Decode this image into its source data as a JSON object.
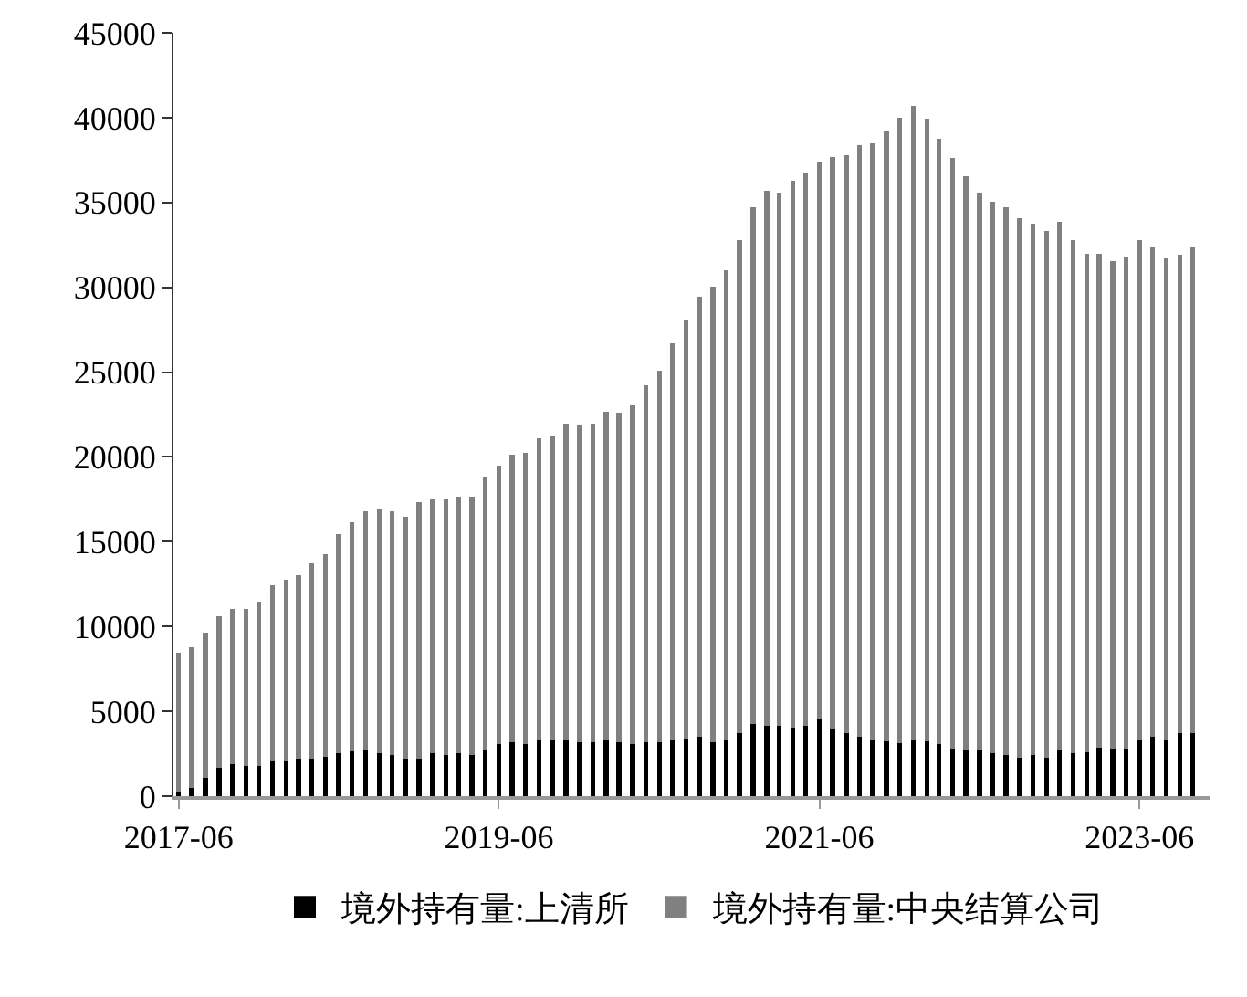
{
  "chart_data": {
    "type": "bar",
    "stacked": true,
    "x": [
      "2017-06",
      "2017-07",
      "2017-08",
      "2017-09",
      "2017-10",
      "2017-11",
      "2017-12",
      "2018-01",
      "2018-02",
      "2018-03",
      "2018-04",
      "2018-05",
      "2018-06",
      "2018-07",
      "2018-08",
      "2018-09",
      "2018-10",
      "2018-11",
      "2018-12",
      "2019-01",
      "2019-02",
      "2019-03",
      "2019-04",
      "2019-05",
      "2019-06",
      "2019-07",
      "2019-08",
      "2019-09",
      "2019-10",
      "2019-11",
      "2019-12",
      "2020-01",
      "2020-02",
      "2020-03",
      "2020-04",
      "2020-05",
      "2020-06",
      "2020-07",
      "2020-08",
      "2020-09",
      "2020-10",
      "2020-11",
      "2020-12",
      "2021-01",
      "2021-02",
      "2021-03",
      "2021-04",
      "2021-05",
      "2021-06",
      "2021-07",
      "2021-08",
      "2021-09",
      "2021-10",
      "2021-11",
      "2021-12",
      "2022-01",
      "2022-02",
      "2022-03",
      "2022-04",
      "2022-05",
      "2022-06",
      "2022-07",
      "2022-08",
      "2022-09",
      "2022-10",
      "2022-11",
      "2022-12",
      "2023-01",
      "2023-02",
      "2023-03",
      "2023-04",
      "2023-05",
      "2023-06",
      "2023-07",
      "2023-08",
      "2023-09",
      "2023-10"
    ],
    "series": [
      {
        "name": "境外持有量:上清所",
        "color": "#000000",
        "values": [
          200,
          470,
          1080,
          1660,
          1870,
          1760,
          1760,
          2090,
          2090,
          2200,
          2200,
          2310,
          2520,
          2630,
          2740,
          2520,
          2420,
          2200,
          2200,
          2520,
          2420,
          2520,
          2420,
          2740,
          3060,
          3170,
          3060,
          3280,
          3280,
          3280,
          3170,
          3170,
          3280,
          3170,
          3060,
          3170,
          3170,
          3280,
          3390,
          3500,
          3170,
          3280,
          3710,
          4250,
          4140,
          4140,
          4030,
          4140,
          4500,
          3970,
          3710,
          3500,
          3350,
          3250,
          3140,
          3350,
          3250,
          3060,
          2810,
          2700,
          2700,
          2520,
          2420,
          2270,
          2420,
          2270,
          2700,
          2520,
          2600,
          2880,
          2810,
          2810,
          3350,
          3500,
          3350,
          3710,
          3710
        ]
      },
      {
        "name": "境外持有量:中央结算公司",
        "color": "#808080",
        "values": [
          8270,
          8330,
          8550,
          8940,
          9160,
          9270,
          9710,
          10350,
          10670,
          10810,
          11500,
          11970,
          12950,
          13520,
          14030,
          14430,
          14350,
          14270,
          15110,
          15000,
          15100,
          15150,
          15250,
          16080,
          16410,
          16950,
          17170,
          17810,
          17920,
          18680,
          18680,
          18790,
          19400,
          19440,
          19980,
          21060,
          21890,
          23400,
          24630,
          25920,
          26870,
          27720,
          29090,
          30450,
          31560,
          31460,
          32270,
          32640,
          32890,
          33710,
          34080,
          34900,
          35160,
          35980,
          36880,
          37320,
          36700,
          35700,
          34830,
          33860,
          32890,
          32530,
          32300,
          31800,
          31330,
          31050,
          31160,
          30250,
          29400,
          29120,
          28740,
          28990,
          29420,
          28840,
          28340,
          28200,
          28630
        ]
      }
    ],
    "xlim": [
      "2017-05-20",
      "2023-11-10"
    ],
    "xticks": [
      "2017-06",
      "2019-06",
      "2021-06",
      "2023-06"
    ],
    "ylim": [
      0,
      45000
    ],
    "yticks": [
      0,
      5000,
      10000,
      15000,
      20000,
      25000,
      30000,
      35000,
      40000,
      45000
    ],
    "grid": false,
    "legend": "bottom"
  }
}
